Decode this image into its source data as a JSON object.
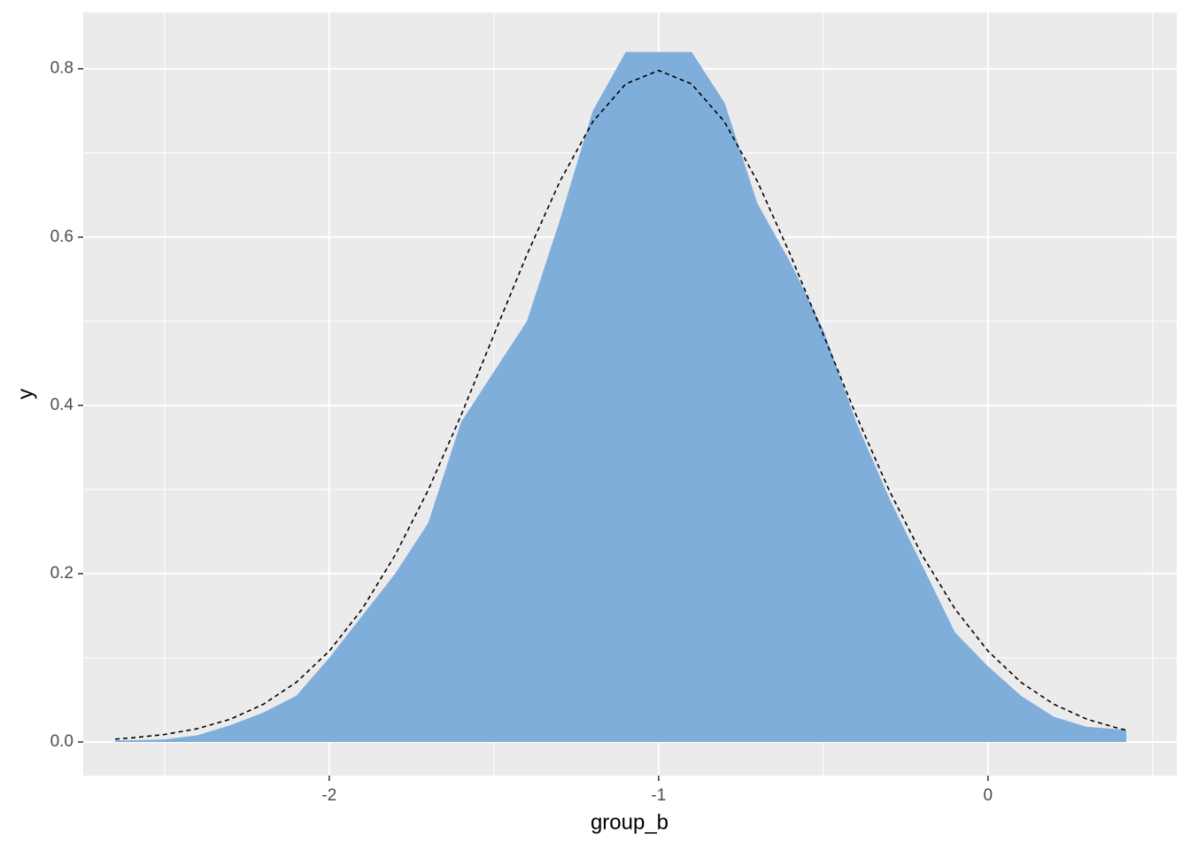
{
  "chart_data": {
    "type": "density",
    "x_label": "group_b",
    "y_label": "y",
    "x": [
      -2.65,
      -2.6,
      -2.5,
      -2.4,
      -2.3,
      -2.2,
      -2.1,
      -2.0,
      -1.9,
      -1.8,
      -1.7,
      -1.6,
      -1.5,
      -1.4,
      -1.3,
      -1.2,
      -1.1,
      -1.0,
      -0.9,
      -0.8,
      -0.7,
      -0.6,
      -0.5,
      -0.4,
      -0.3,
      -0.2,
      -0.1,
      0.0,
      0.1,
      0.2,
      0.3,
      0.4,
      0.42
    ],
    "series": [
      {
        "geom": "area",
        "color": "#80aedb",
        "values": [
          0.002,
          0.002,
          0.003,
          0.008,
          0.02,
          0.035,
          0.055,
          0.1,
          0.15,
          0.2,
          0.26,
          0.38,
          0.44,
          0.5,
          0.62,
          0.75,
          0.82,
          0.82,
          0.82,
          0.76,
          0.64,
          0.57,
          0.49,
          0.38,
          0.29,
          0.21,
          0.13,
          0.09,
          0.055,
          0.03,
          0.018,
          0.015,
          0.014
        ]
      },
      {
        "geom": "line",
        "linestyle": "dashed",
        "color": "#000000",
        "values": [
          0.0034,
          0.0048,
          0.0089,
          0.0158,
          0.0271,
          0.0448,
          0.0709,
          0.108,
          0.158,
          0.222,
          0.299,
          0.388,
          0.484,
          0.579,
          0.666,
          0.737,
          0.782,
          0.798,
          0.782,
          0.737,
          0.666,
          0.579,
          0.484,
          0.388,
          0.299,
          0.222,
          0.158,
          0.108,
          0.0709,
          0.0448,
          0.0271,
          0.0158,
          0.0141
        ]
      }
    ],
    "xlim": [
      -2.747,
      0.573
    ],
    "ylim": [
      -0.04,
      0.867
    ],
    "xticks": [
      -2,
      -1,
      0
    ],
    "yticks": [
      {
        "value": 0,
        "label": "0.0"
      },
      0.2,
      0.4,
      0.6,
      0.8
    ],
    "x_minor": [
      -2.5,
      -1.5,
      -0.5,
      0.5
    ],
    "y_minor": [
      0.1,
      0.3,
      0.5,
      0.7
    ],
    "grid": true
  }
}
